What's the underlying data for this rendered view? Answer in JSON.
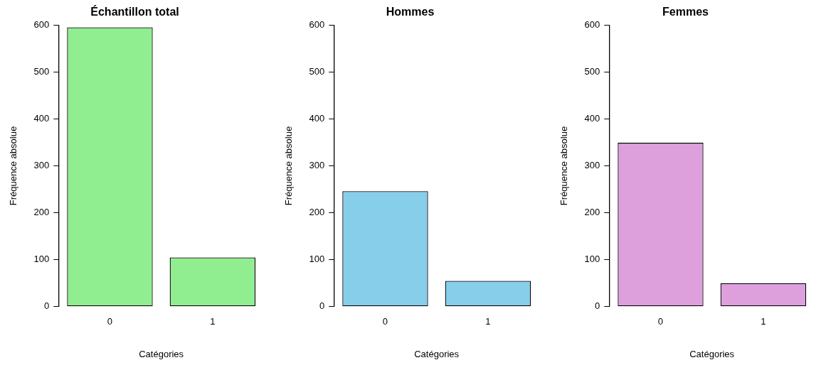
{
  "chart_data": [
    {
      "type": "bar",
      "title": "Échantillon total",
      "xlabel": "Catégories",
      "ylabel": "Fréquence absolue",
      "categories": [
        "0",
        "1"
      ],
      "values": [
        595,
        105
      ],
      "color": "#90ee90",
      "ylim": [
        0,
        600
      ],
      "yticks": [
        0,
        100,
        200,
        300,
        400,
        500,
        600
      ],
      "grid": false
    },
    {
      "type": "bar",
      "title": "Hommes",
      "xlabel": "Catégories",
      "ylabel": "Fréquence absolue",
      "categories": [
        "0",
        "1"
      ],
      "values": [
        246,
        55
      ],
      "color": "#87ceeb",
      "ylim": [
        0,
        600
      ],
      "yticks": [
        0,
        100,
        200,
        300,
        400,
        500,
        600
      ],
      "grid": false
    },
    {
      "type": "bar",
      "title": "Femmes",
      "xlabel": "Catégories",
      "ylabel": "Fréquence absolue",
      "categories": [
        "0",
        "1"
      ],
      "values": [
        349,
        50
      ],
      "color": "#dda0dd",
      "ylim": [
        0,
        600
      ],
      "yticks": [
        0,
        100,
        200,
        300,
        400,
        500,
        600
      ],
      "grid": false
    }
  ]
}
